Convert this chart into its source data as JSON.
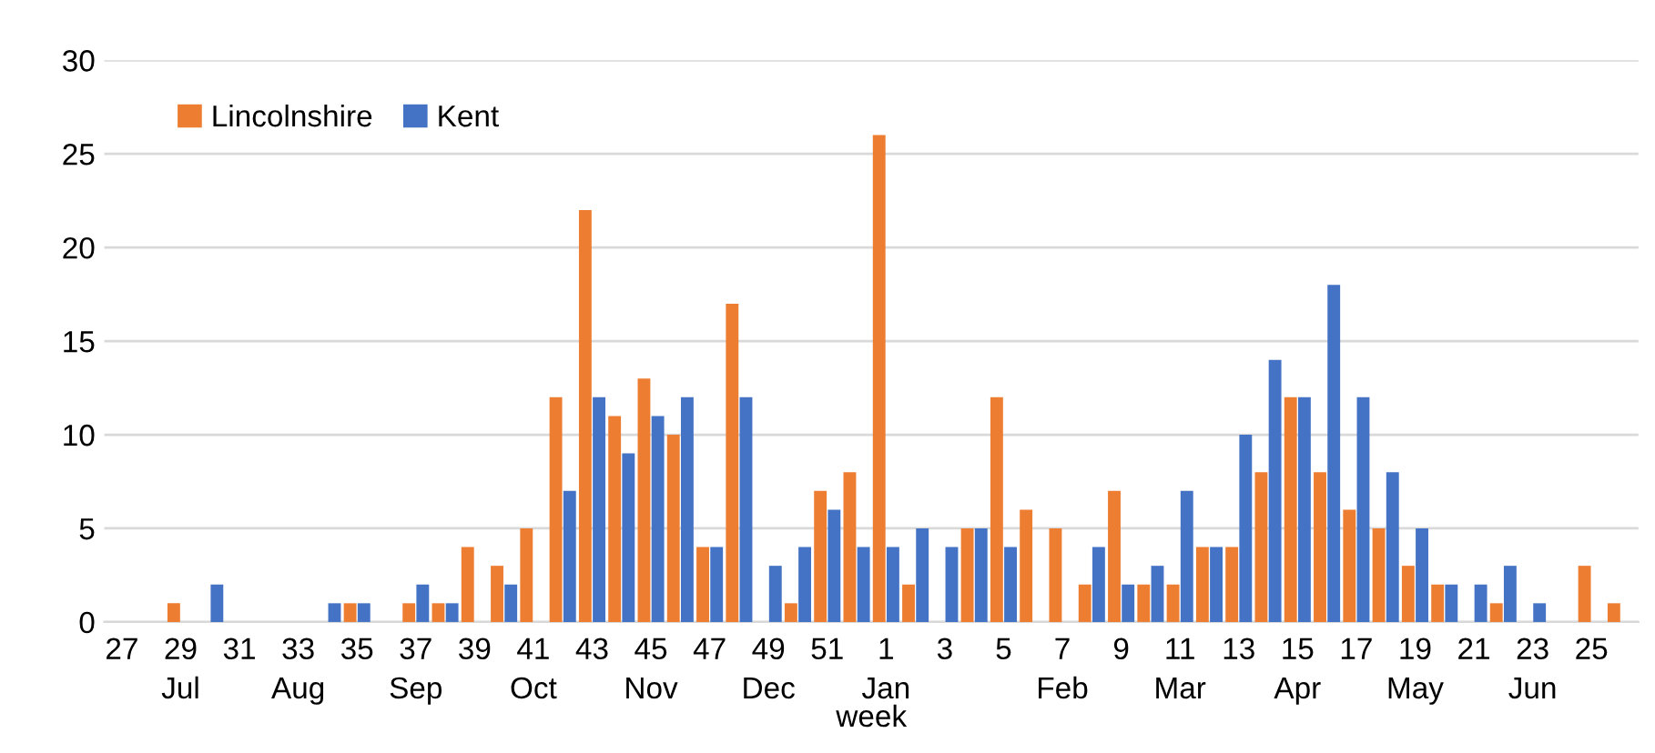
{
  "chart_data": {
    "type": "bar",
    "xlabel": "week",
    "categories": [
      "27",
      null,
      "29\nJul",
      null,
      "31",
      null,
      "33\nAug",
      null,
      "35",
      null,
      "37\nSep",
      null,
      "39",
      null,
      "41\nOct",
      null,
      "43",
      null,
      "45\nNov",
      null,
      "47",
      null,
      "49\nDec",
      null,
      "51",
      null,
      "1\nJan",
      null,
      "3",
      null,
      "5",
      null,
      "7\nFeb",
      null,
      "9",
      null,
      "11\nMar",
      null,
      "13",
      null,
      "15\nApr",
      null,
      "17",
      null,
      "19\nMay",
      null,
      "21",
      null,
      "23\nJun",
      null,
      "25",
      null
    ],
    "series": [
      {
        "name": "Lincolnshire",
        "color": "#ed7d31",
        "values": [
          0,
          0,
          1,
          0,
          0,
          0,
          0,
          0,
          1,
          0,
          1,
          1,
          4,
          3,
          5,
          12,
          22,
          11,
          13,
          10,
          4,
          17,
          0,
          1,
          7,
          8,
          26,
          2,
          0,
          5,
          12,
          6,
          5,
          2,
          7,
          2,
          2,
          4,
          4,
          8,
          12,
          8,
          6,
          5,
          3,
          2,
          0,
          1,
          0,
          0,
          3,
          1
        ]
      },
      {
        "name": "Kent",
        "color": "#4472c4",
        "values": [
          0,
          0,
          0,
          2,
          0,
          0,
          0,
          1,
          1,
          0,
          2,
          1,
          0,
          2,
          0,
          7,
          12,
          9,
          11,
          12,
          4,
          12,
          3,
          4,
          6,
          4,
          4,
          5,
          4,
          5,
          4,
          0,
          0,
          4,
          2,
          3,
          7,
          4,
          10,
          14,
          12,
          18,
          12,
          8,
          5,
          2,
          2,
          3,
          1,
          0,
          0,
          0
        ]
      }
    ],
    "ylim": [
      0,
      30
    ],
    "yticks": [
      0,
      5,
      10,
      15,
      20,
      25,
      30
    ],
    "grid": "y",
    "legend": "top left"
  }
}
